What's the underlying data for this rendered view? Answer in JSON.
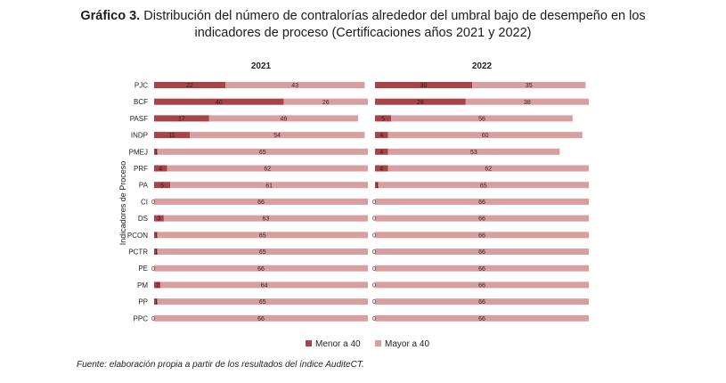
{
  "title": {
    "prefix": "Gráfico 3.",
    "line1": "Distribución del número de contralorías alrededor del umbral bajo de desempeño en los",
    "line2": "indicadores de proceso (Certificaciones años 2021 y 2022)"
  },
  "source": "Fuente: elaboración propia a partir de los resultados del índice AuditeCT.",
  "colors": {
    "menor": "#a84448",
    "mayor": "#d99ea0",
    "text": "#222222"
  },
  "chart_data": {
    "type": "bar",
    "orientation": "horizontal",
    "stacked": true,
    "ylabel": "Indicadores de Proceso",
    "categories": [
      "PJC",
      "BCF",
      "PASF",
      "INDP",
      "PMEJ",
      "PRF",
      "PA",
      "CI",
      "DS",
      "PCON",
      "PCTR",
      "PE",
      "PM",
      "PP",
      "PPC"
    ],
    "legend": [
      "Menor a 40",
      "Mayor a 40"
    ],
    "legend_position": "bottom",
    "xlim": [
      0,
      66
    ],
    "panels": [
      {
        "title": "2021",
        "series": [
          {
            "name": "Menor a 40",
            "values": [
              22,
              40,
              17,
              11,
              1,
              4,
              5,
              0,
              3,
              1,
              1,
              0,
              2,
              1,
              0
            ]
          },
          {
            "name": "Mayor a 40",
            "values": [
              43,
              26,
              46,
              54,
              65,
              62,
              61,
              66,
              63,
              65,
              65,
              66,
              64,
              65,
              66
            ]
          }
        ]
      },
      {
        "title": "2022",
        "series": [
          {
            "name": "Menor a 40",
            "values": [
              30,
              28,
              5,
              4,
              4,
              4,
              1,
              0,
              0,
              0,
              0,
              0,
              0,
              0,
              0
            ]
          },
          {
            "name": "Mayor a 40",
            "values": [
              35,
              38,
              56,
              60,
              53,
              62,
              65,
              66,
              66,
              66,
              66,
              66,
              66,
              66,
              66
            ]
          }
        ]
      }
    ]
  }
}
